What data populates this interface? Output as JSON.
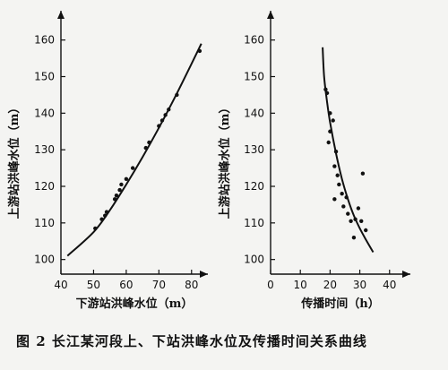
{
  "caption": "图 2   长江某河段上、下站洪峰水位及传播时间关系曲线",
  "chart_data": [
    {
      "type": "scatter",
      "xlabel": "下游站洪峰水位（m）",
      "ylabel": "上游站洪峰水位（m）",
      "xlim": [
        40,
        85
      ],
      "ylim": [
        96,
        168
      ],
      "xticks": [
        40,
        50,
        60,
        70,
        80
      ],
      "yticks": [
        100,
        110,
        120,
        130,
        140,
        150,
        160
      ],
      "points": [
        [
          50.5,
          108.5
        ],
        [
          52.5,
          111.0
        ],
        [
          53.5,
          112.0
        ],
        [
          54.0,
          113.0
        ],
        [
          56.5,
          116.5
        ],
        [
          57.0,
          117.5
        ],
        [
          58.0,
          119.0
        ],
        [
          58.5,
          120.5
        ],
        [
          60.0,
          122.0
        ],
        [
          62.0,
          125.0
        ],
        [
          66.0,
          130.5
        ],
        [
          67.0,
          132.0
        ],
        [
          70.0,
          136.5
        ],
        [
          71.0,
          138.0
        ],
        [
          72.0,
          139.5
        ],
        [
          73.0,
          141.0
        ],
        [
          75.5,
          145.0
        ],
        [
          82.5,
          157.0
        ]
      ],
      "curve": [
        [
          42.0,
          101.0
        ],
        [
          50.0,
          107.5
        ],
        [
          55.0,
          113.5
        ],
        [
          60.0,
          120.5
        ],
        [
          65.0,
          128.0
        ],
        [
          70.0,
          136.0
        ],
        [
          75.0,
          144.5
        ],
        [
          80.0,
          153.5
        ],
        [
          83.0,
          159.0
        ]
      ]
    },
    {
      "type": "scatter",
      "xlabel": "传播时间（h）",
      "ylabel": "上游站洪峰水位（m）",
      "xlim": [
        0,
        47
      ],
      "ylim": [
        96,
        168
      ],
      "xticks": [
        0,
        10,
        20,
        30,
        40
      ],
      "yticks": [
        100,
        110,
        120,
        130,
        140,
        150,
        160
      ],
      "points": [
        [
          18.5,
          146.5
        ],
        [
          19.0,
          145.5
        ],
        [
          20.0,
          140.0
        ],
        [
          20.0,
          135.0
        ],
        [
          21.0,
          138.0
        ],
        [
          19.5,
          132.0
        ],
        [
          22.0,
          129.5
        ],
        [
          21.5,
          125.5
        ],
        [
          22.5,
          123.0
        ],
        [
          23.0,
          120.5
        ],
        [
          24.0,
          118.0
        ],
        [
          21.5,
          116.5
        ],
        [
          25.5,
          117.0
        ],
        [
          24.5,
          114.5
        ],
        [
          26.0,
          112.5
        ],
        [
          27.0,
          110.5
        ],
        [
          28.5,
          111.0
        ],
        [
          29.5,
          114.0
        ],
        [
          30.5,
          110.5
        ],
        [
          31.0,
          123.5
        ],
        [
          32.0,
          108.0
        ],
        [
          28.0,
          106.0
        ]
      ],
      "curve": [
        [
          17.5,
          158.0
        ],
        [
          18.0,
          150.0
        ],
        [
          19.0,
          143.0
        ],
        [
          20.0,
          137.5
        ],
        [
          22.0,
          129.0
        ],
        [
          24.0,
          122.0
        ],
        [
          26.0,
          116.5
        ],
        [
          28.0,
          112.0
        ],
        [
          30.0,
          108.5
        ],
        [
          32.0,
          105.5
        ],
        [
          34.5,
          102.0
        ]
      ]
    }
  ]
}
